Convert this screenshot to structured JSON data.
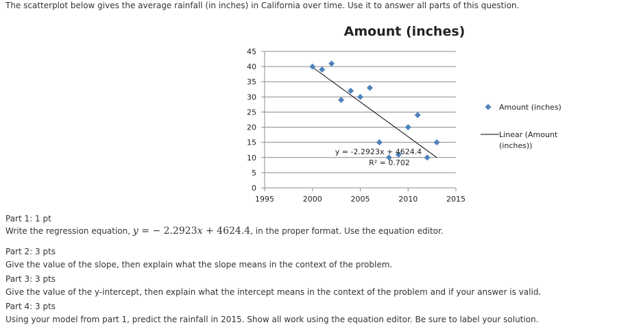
{
  "intro_text": "The scatterplot below gives the average rainfall (in inches) in California over time. Use it to answer all parts of this question.",
  "chart_data": {
    "type": "scatter",
    "title": "Amount (inches)",
    "xlabel": "",
    "ylabel": "",
    "xlim": [
      1995,
      2015
    ],
    "ylim": [
      0,
      45
    ],
    "x_ticks": [
      1995,
      2000,
      2005,
      2010,
      2015
    ],
    "y_ticks": [
      0,
      5,
      10,
      15,
      20,
      25,
      30,
      35,
      40,
      45
    ],
    "grid": "horizontal",
    "legend_position": "right",
    "series": [
      {
        "name": "Amount (inches)",
        "color": "#4F81BD",
        "marker": "diamond",
        "x": [
          2000,
          2001,
          2002,
          2003,
          2004,
          2005,
          2006,
          2007,
          2008,
          2009,
          2010,
          2011,
          2012,
          2013
        ],
        "y": [
          40,
          39,
          41,
          29,
          32,
          30,
          33,
          15,
          10,
          11,
          20,
          24,
          10,
          15
        ]
      }
    ],
    "trendline": {
      "name": "Linear (Amount (inches))",
      "color": "#000000",
      "slope": -2.2923,
      "intercept": 4624.4,
      "x_range": [
        2000,
        2013
      ],
      "equation_label": "y = -2.2923x + 4624.4",
      "r2_label": "R² = 0.702"
    },
    "legend": {
      "series_label": "Amount (inches)",
      "trend_label_line1": "Linear (Amount",
      "trend_label_line2": "(inches))"
    }
  },
  "parts": [
    {
      "heading": "Part 1: 1 pt",
      "text_before": "Write the regression equation, ",
      "eq_var": "y",
      "eq_rest": " = − 2.2923",
      "eq_var2": "x",
      "eq_end": " + 4624.4",
      "text_after": ", in the proper format.  Use the equation editor."
    },
    {
      "heading": "Part 2: 3 pts",
      "text": "Give the value of the slope, then explain what the slope means in the context of the problem."
    },
    {
      "heading": "Part 3: 3 pts",
      "text": "Give the value of the y-intercept, then explain what the intercept means in the context of the problem and if your answer is valid."
    },
    {
      "heading": "Part 4: 3 pts",
      "text": "Using your model from part 1, predict the rainfall in 2015.  Show all work using the equation editor.  Be sure to label your solution."
    }
  ]
}
